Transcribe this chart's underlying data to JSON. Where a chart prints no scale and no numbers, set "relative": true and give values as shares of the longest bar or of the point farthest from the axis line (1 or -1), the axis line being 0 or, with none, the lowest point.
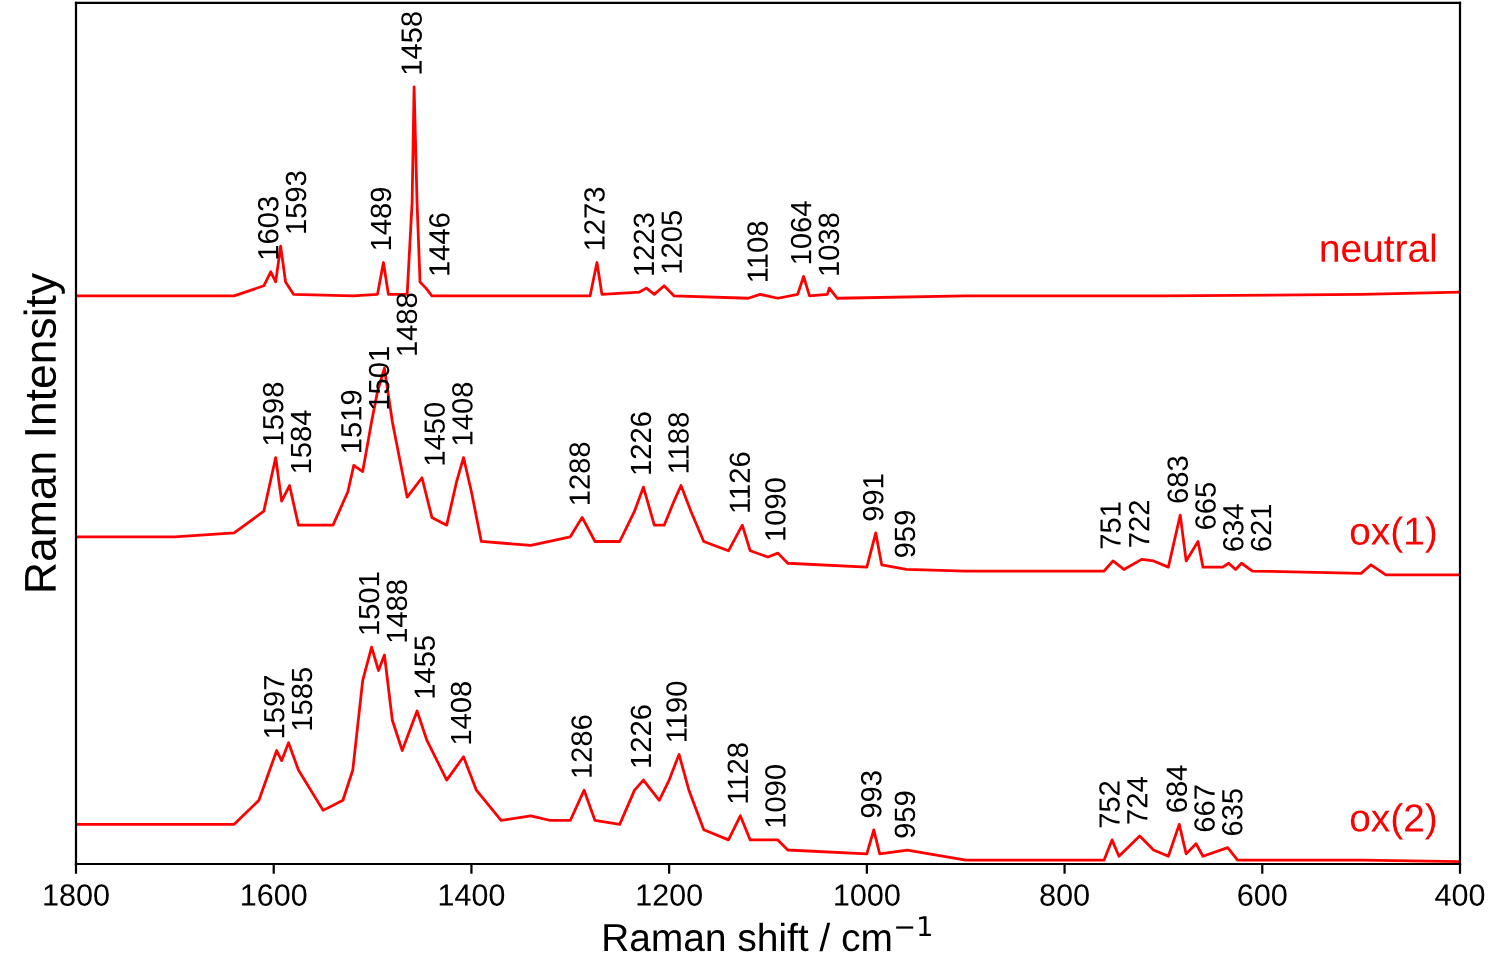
{
  "chart_data": {
    "type": "line",
    "relative": true,
    "xlabel": "Raman shift / cm$^{−1}$",
    "ylabel": "Raman Intensity",
    "xlim": [
      1800,
      400
    ],
    "xticks": [
      1800,
      1600,
      1400,
      1200,
      1000,
      800,
      600,
      400
    ],
    "grid": false,
    "legend": false,
    "tick_labels": "x",
    "marker": "none",
    "line_style": "solid",
    "series": [
      {
        "name": "neutral",
        "color": "#ff0000",
        "x": [
          1800,
          1700,
          1640,
          1610,
          1603,
          1598,
          1593,
          1588,
          1580,
          1520,
          1495,
          1489,
          1484,
          1465,
          1460,
          1458,
          1455,
          1452,
          1446,
          1440,
          1300,
          1280,
          1273,
          1268,
          1230,
          1223,
          1215,
          1205,
          1195,
          1120,
          1108,
          1090,
          1070,
          1064,
          1058,
          1040,
          1038,
          1030,
          900,
          700,
          500,
          400
        ],
        "values": [
          0.731,
          0.731,
          0.731,
          0.744,
          0.762,
          0.749,
          0.795,
          0.749,
          0.733,
          0.731,
          0.733,
          0.774,
          0.733,
          0.733,
          0.851,
          1.0,
          0.851,
          0.749,
          0.741,
          0.731,
          0.731,
          0.731,
          0.774,
          0.733,
          0.736,
          0.741,
          0.733,
          0.744,
          0.731,
          0.728,
          0.733,
          0.728,
          0.733,
          0.756,
          0.731,
          0.733,
          0.741,
          0.728,
          0.731,
          0.731,
          0.733,
          0.736
        ]
      },
      {
        "name": "ox(1)",
        "color": "#ff0000",
        "x": [
          1800,
          1700,
          1640,
          1610,
          1598,
          1592,
          1584,
          1575,
          1540,
          1525,
          1519,
          1510,
          1501,
          1495,
          1488,
          1480,
          1465,
          1450,
          1440,
          1425,
          1415,
          1408,
          1400,
          1390,
          1340,
          1300,
          1288,
          1275,
          1250,
          1235,
          1226,
          1215,
          1205,
          1195,
          1188,
          1178,
          1165,
          1140,
          1126,
          1118,
          1100,
          1090,
          1080,
          1000,
          991,
          985,
          960,
          900,
          760,
          751,
          740,
          722,
          710,
          695,
          683,
          677,
          665,
          660,
          640,
          634,
          627,
          621,
          610,
          500,
          490,
          475,
          400
        ],
        "values": [
          0.421,
          0.421,
          0.426,
          0.454,
          0.523,
          0.467,
          0.487,
          0.436,
          0.436,
          0.479,
          0.513,
          0.505,
          0.569,
          0.608,
          0.638,
          0.569,
          0.472,
          0.497,
          0.446,
          0.436,
          0.492,
          0.523,
          0.479,
          0.415,
          0.41,
          0.421,
          0.446,
          0.415,
          0.415,
          0.454,
          0.485,
          0.436,
          0.436,
          0.467,
          0.487,
          0.454,
          0.415,
          0.403,
          0.436,
          0.403,
          0.395,
          0.4,
          0.387,
          0.382,
          0.426,
          0.385,
          0.379,
          0.377,
          0.377,
          0.39,
          0.379,
          0.392,
          0.39,
          0.382,
          0.449,
          0.39,
          0.415,
          0.382,
          0.382,
          0.387,
          0.379,
          0.387,
          0.377,
          0.374,
          0.385,
          0.372,
          0.372
        ]
      },
      {
        "name": "ox(2)",
        "color": "#ff0000",
        "x": [
          1800,
          1700,
          1640,
          1615,
          1597,
          1592,
          1585,
          1575,
          1550,
          1530,
          1520,
          1510,
          1501,
          1494,
          1488,
          1480,
          1470,
          1455,
          1445,
          1425,
          1408,
          1395,
          1370,
          1340,
          1320,
          1300,
          1286,
          1275,
          1250,
          1235,
          1226,
          1210,
          1200,
          1190,
          1180,
          1165,
          1140,
          1128,
          1118,
          1090,
          1080,
          1000,
          993,
          987,
          959,
          900,
          760,
          752,
          745,
          724,
          710,
          695,
          684,
          677,
          667,
          660,
          635,
          625,
          500,
          400
        ],
        "values": [
          0.051,
          0.051,
          0.051,
          0.082,
          0.146,
          0.133,
          0.156,
          0.121,
          0.069,
          0.082,
          0.121,
          0.236,
          0.279,
          0.249,
          0.269,
          0.185,
          0.146,
          0.197,
          0.159,
          0.108,
          0.138,
          0.095,
          0.056,
          0.062,
          0.056,
          0.056,
          0.095,
          0.056,
          0.051,
          0.095,
          0.108,
          0.082,
          0.108,
          0.141,
          0.095,
          0.044,
          0.031,
          0.062,
          0.031,
          0.031,
          0.018,
          0.013,
          0.044,
          0.013,
          0.018,
          0.005,
          0.005,
          0.031,
          0.01,
          0.036,
          0.018,
          0.01,
          0.051,
          0.013,
          0.026,
          0.01,
          0.021,
          0.005,
          0.005,
          0.003
        ]
      }
    ],
    "annotations": [
      {
        "text": "1603",
        "x": 1603,
        "y": 0.762
      },
      {
        "text": "1593",
        "x": 1593,
        "y": 0.795
      },
      {
        "text": "1489",
        "x": 1489,
        "y": 0.774
      },
      {
        "text": "1458",
        "x": 1458,
        "y": 1.0
      },
      {
        "text": "1446",
        "x": 1446,
        "y": 0.741
      },
      {
        "text": "1273",
        "x": 1273,
        "y": 0.774
      },
      {
        "text": "1223",
        "x": 1223,
        "y": 0.741
      },
      {
        "text": "1205",
        "x": 1205,
        "y": 0.744
      },
      {
        "text": "1108",
        "x": 1108,
        "y": 0.733
      },
      {
        "text": "1064",
        "x": 1064,
        "y": 0.756
      },
      {
        "text": "1038",
        "x": 1038,
        "y": 0.741
      },
      {
        "text": "1598",
        "x": 1598,
        "y": 0.523
      },
      {
        "text": "1584",
        "x": 1584,
        "y": 0.487
      },
      {
        "text": "1519",
        "x": 1519,
        "y": 0.513
      },
      {
        "text": "1501",
        "x": 1501,
        "y": 0.569
      },
      {
        "text": "1488",
        "x": 1488,
        "y": 0.638
      },
      {
        "text": "1450",
        "x": 1450,
        "y": 0.497
      },
      {
        "text": "1408",
        "x": 1408,
        "y": 0.523
      },
      {
        "text": "1288",
        "x": 1288,
        "y": 0.446
      },
      {
        "text": "1226",
        "x": 1226,
        "y": 0.485
      },
      {
        "text": "1188",
        "x": 1188,
        "y": 0.487
      },
      {
        "text": "1126",
        "x": 1126,
        "y": 0.436
      },
      {
        "text": "1090",
        "x": 1090,
        "y": 0.4
      },
      {
        "text": "991",
        "x": 991,
        "y": 0.426
      },
      {
        "text": "959",
        "x": 959,
        "y": 0.379
      },
      {
        "text": "751",
        "x": 751,
        "y": 0.39
      },
      {
        "text": "722",
        "x": 722,
        "y": 0.392
      },
      {
        "text": "683",
        "x": 683,
        "y": 0.449
      },
      {
        "text": "665",
        "x": 665,
        "y": 0.415
      },
      {
        "text": "634",
        "x": 634,
        "y": 0.387
      },
      {
        "text": "621",
        "x": 621,
        "y": 0.387
      },
      {
        "text": "1597",
        "x": 1597,
        "y": 0.146
      },
      {
        "text": "1585",
        "x": 1585,
        "y": 0.156
      },
      {
        "text": "1501",
        "x": 1501,
        "y": 0.279
      },
      {
        "text": "1488",
        "x": 1488,
        "y": 0.269
      },
      {
        "text": "1455",
        "x": 1455,
        "y": 0.197
      },
      {
        "text": "1408",
        "x": 1408,
        "y": 0.138
      },
      {
        "text": "1286",
        "x": 1286,
        "y": 0.095
      },
      {
        "text": "1226",
        "x": 1226,
        "y": 0.108
      },
      {
        "text": "1190",
        "x": 1190,
        "y": 0.141
      },
      {
        "text": "1128",
        "x": 1128,
        "y": 0.062
      },
      {
        "text": "1090",
        "x": 1090,
        "y": 0.031
      },
      {
        "text": "993",
        "x": 993,
        "y": 0.044
      },
      {
        "text": "959",
        "x": 959,
        "y": 0.018
      },
      {
        "text": "752",
        "x": 752,
        "y": 0.031
      },
      {
        "text": "724",
        "x": 724,
        "y": 0.036
      },
      {
        "text": "684",
        "x": 684,
        "y": 0.051
      },
      {
        "text": "667",
        "x": 667,
        "y": 0.026
      },
      {
        "text": "635",
        "x": 635,
        "y": 0.021
      }
    ]
  }
}
